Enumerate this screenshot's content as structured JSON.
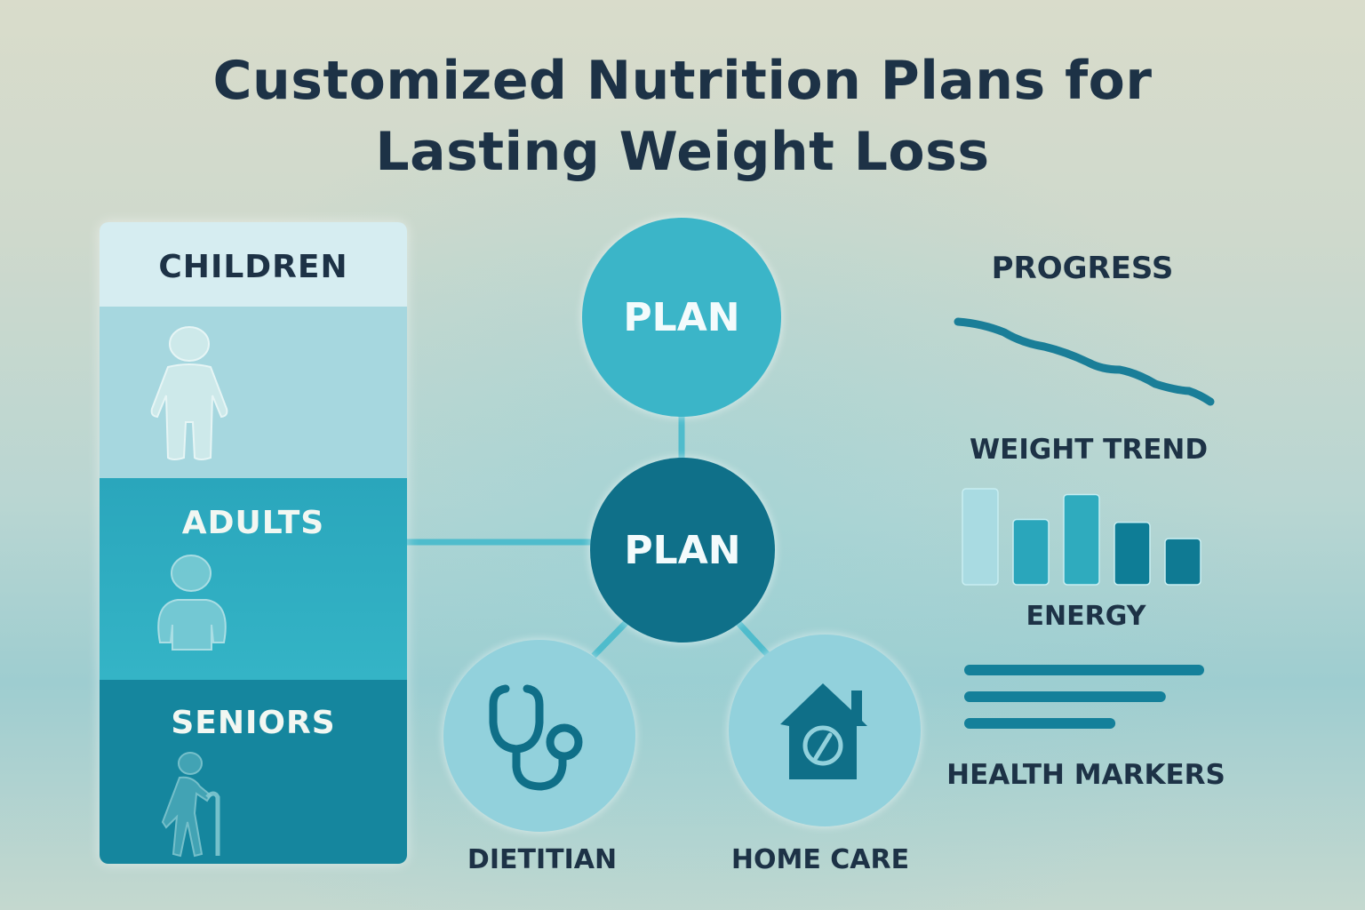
{
  "title": {
    "line1": "Customized Nutrition Plans for",
    "line2": "Lasting Weight Loss"
  },
  "groups": [
    {
      "label": "CHILDREN",
      "icon": "child-icon"
    },
    {
      "label": "ADULTS",
      "icon": "adult-icon"
    },
    {
      "label": "SENIORS",
      "icon": "senior-with-cane-icon"
    }
  ],
  "hub": {
    "top_label": "PLAN",
    "center_label": "PLAN"
  },
  "services": [
    {
      "label": "DIETITIAN",
      "icon": "stethoscope-icon"
    },
    {
      "label": "HOME CARE",
      "icon": "house-with-spoon-icon"
    }
  ],
  "progress": {
    "heading": "PROGRESS",
    "weight_trend": {
      "label": "WEIGHT TREND",
      "direction": "decreasing"
    },
    "energy": {
      "label": "ENERGY",
      "relative_values": [
        1.0,
        0.68,
        0.94,
        0.65,
        0.48
      ]
    },
    "health_markers": {
      "label": "HEALTH MARKERS",
      "relative_values": [
        1.0,
        0.84,
        0.63
      ]
    }
  },
  "colors": {
    "dark_text": "#1d3246",
    "teal_dark": "#0f7089",
    "teal": "#2aa8bd",
    "teal_light": "#a6d7df"
  }
}
